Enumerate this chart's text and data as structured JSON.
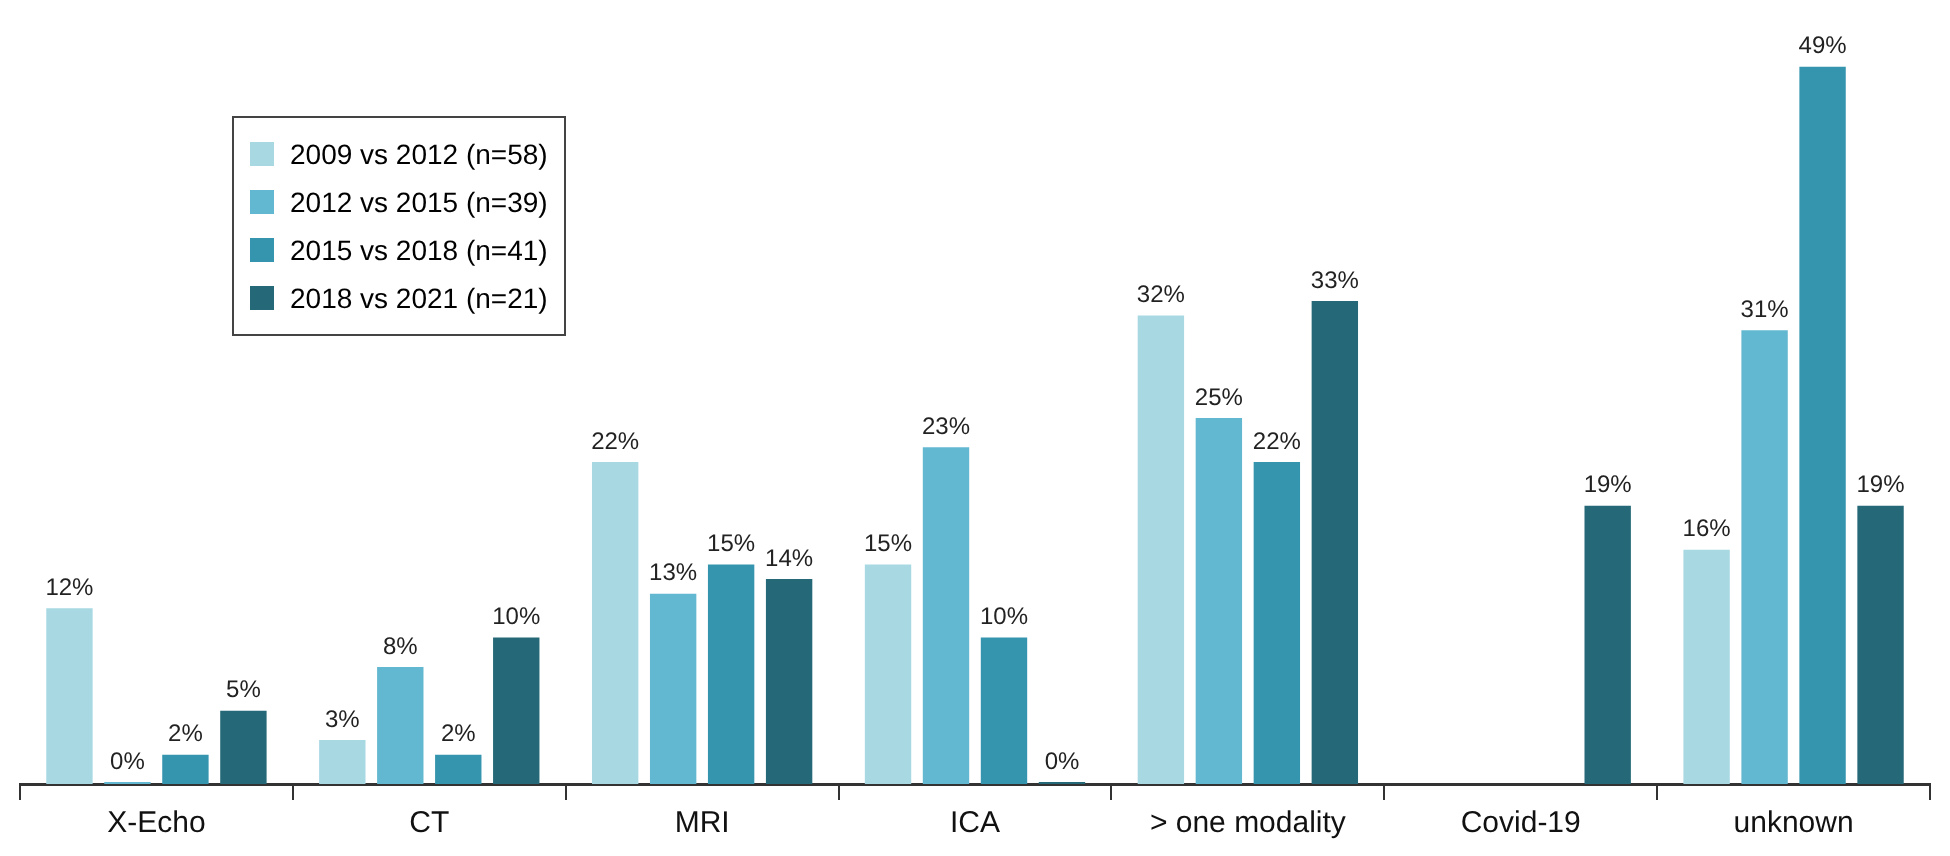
{
  "chart_data": {
    "type": "bar",
    "categories": [
      "X-Echo",
      "CT",
      "MRI",
      "ICA",
      "> one modality",
      "Covid-19",
      "unknown"
    ],
    "series": [
      {
        "name": "2009 vs 2012 (n=58)",
        "color": "#a8d9e3",
        "values": [
          12,
          3,
          22,
          15,
          32,
          null,
          16
        ],
        "value_labels": [
          "12%",
          "3%",
          "22%",
          "15%",
          "32%",
          null,
          "16%"
        ]
      },
      {
        "name": "2012 vs 2015 (n=39)",
        "color": "#62b8d0",
        "values": [
          0,
          8,
          13,
          23,
          25,
          null,
          31
        ],
        "value_labels": [
          "0%",
          "8%",
          "13%",
          "23%",
          "25%",
          null,
          "31%"
        ]
      },
      {
        "name": "2015 vs 2018 (n=41)",
        "color": "#3595ae",
        "values": [
          2,
          2,
          15,
          10,
          22,
          null,
          49
        ],
        "value_labels": [
          "2%",
          "2%",
          "15%",
          "10%",
          "22%",
          null,
          "49%"
        ]
      },
      {
        "name": "2018 vs 2021 (n=21)",
        "color": "#256877",
        "values": [
          5,
          10,
          14,
          0,
          33,
          19,
          19
        ],
        "value_labels": [
          "5%",
          "10%",
          "14%",
          "0%",
          "33%",
          "19%",
          "19%"
        ]
      }
    ],
    "legend": "top left",
    "grid": false,
    "tick_labels": "x"
  }
}
